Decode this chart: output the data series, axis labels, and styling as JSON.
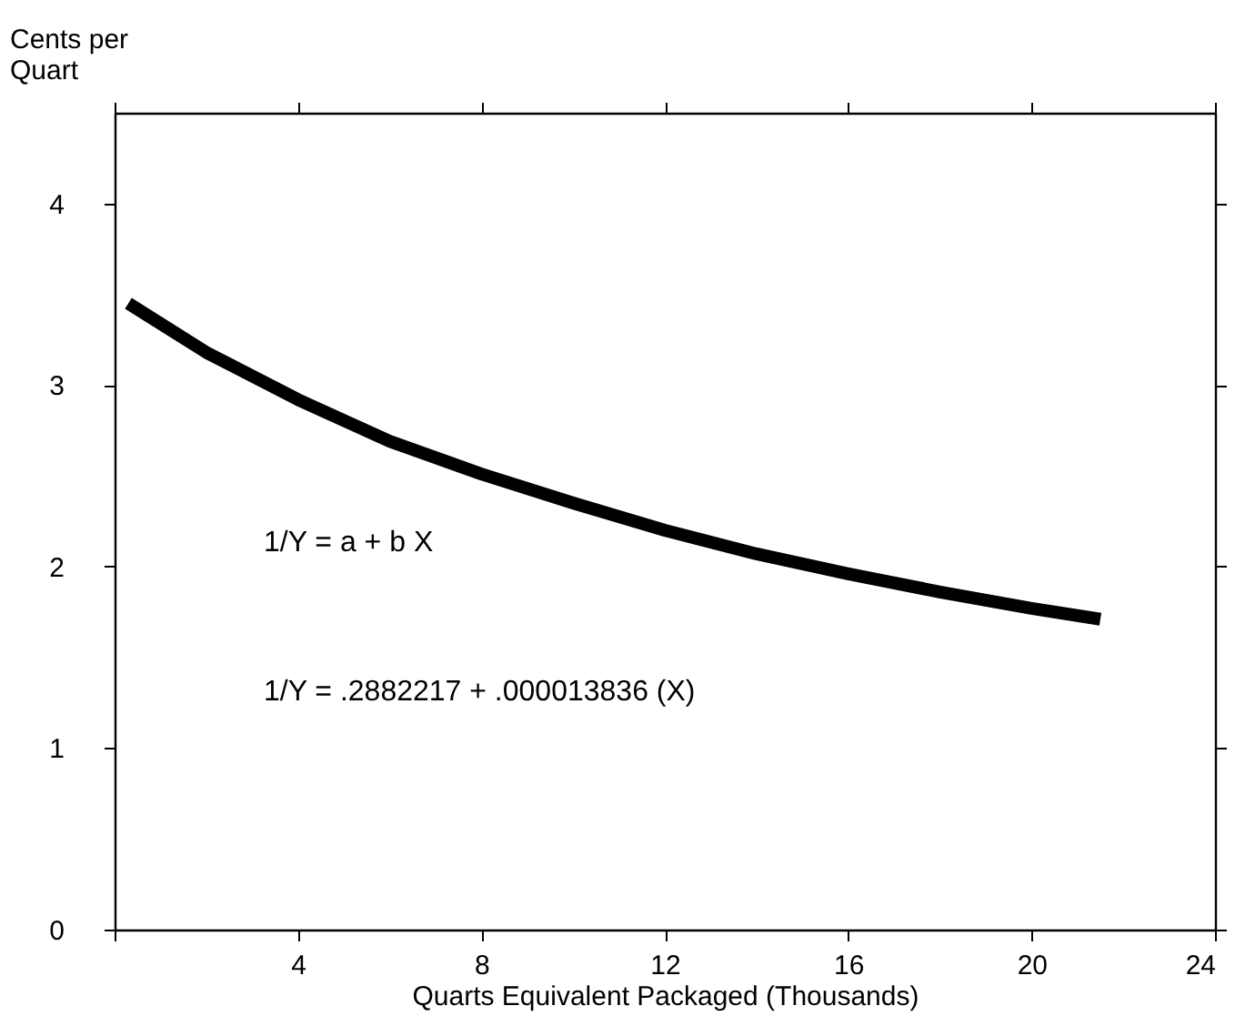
{
  "chart_data": {
    "type": "line",
    "xlabel": "Quarts Equivalent Packaged (Thousands)",
    "ylabel": "Cents per\nQuart",
    "x": [
      0.3,
      2,
      4,
      6,
      8,
      10,
      12,
      14,
      16,
      18,
      20,
      21.5
    ],
    "series": [
      {
        "color": "#000000",
        "values": [
          3.45,
          3.18,
          2.92,
          2.69,
          2.51,
          2.35,
          2.2,
          2.07,
          1.96,
          1.86,
          1.77,
          1.71
        ]
      }
    ],
    "xlim": [
      0,
      24
    ],
    "xticks": [
      {
        "value": 0,
        "label": null
      },
      4,
      8,
      12,
      16,
      20,
      24
    ],
    "ylim": [
      0,
      4.5
    ],
    "yticks": [
      0,
      1,
      2,
      3,
      4
    ],
    "annotations": [
      "1/Y = a + b X",
      "1/Y = .2882217 + .000013836 (X)"
    ],
    "grid": false,
    "marker": "none",
    "line_style": "solid"
  }
}
